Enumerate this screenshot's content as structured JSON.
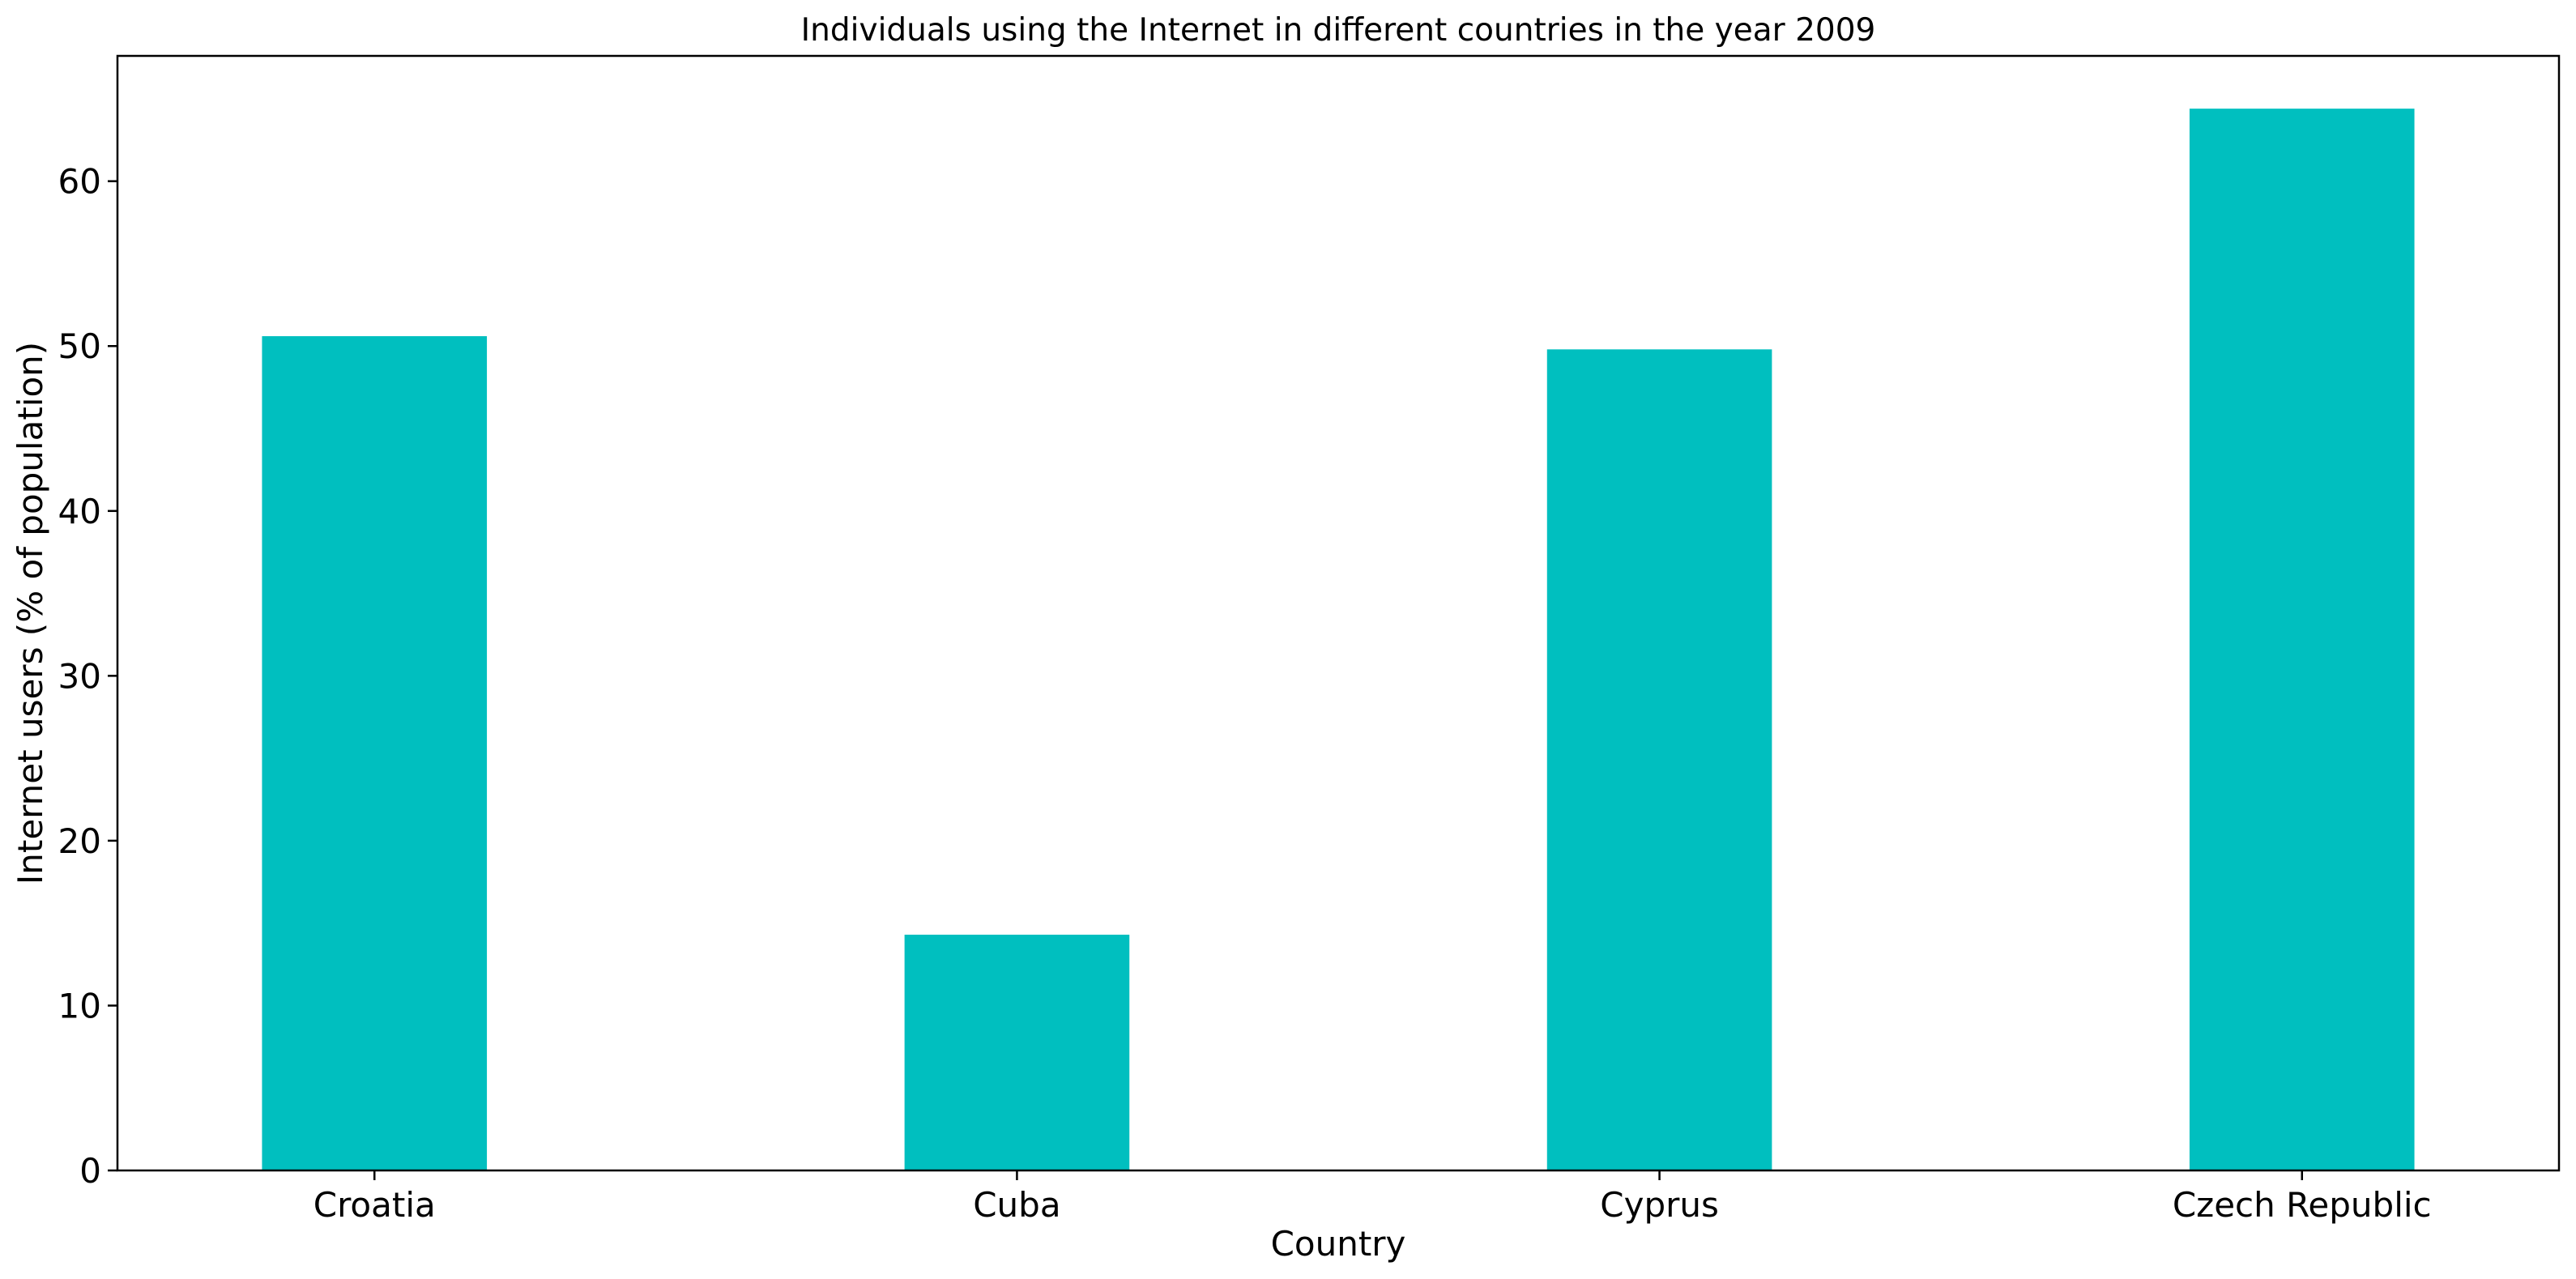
{
  "chart_data": {
    "type": "bar",
    "title": "Individuals using the Internet in different countries in the year 2009",
    "xlabel": "Country",
    "ylabel": "Internet users (% of population)",
    "categories": [
      "Croatia",
      "Cuba",
      "Cyprus",
      "Czech Republic"
    ],
    "values": [
      50.6,
      14.3,
      49.8,
      64.4
    ],
    "ylim": [
      0,
      67.6
    ],
    "yticks": [
      0,
      10,
      20,
      30,
      40,
      50,
      60
    ],
    "bar_color": "#00bfbf",
    "grid": false,
    "legend": "none"
  }
}
